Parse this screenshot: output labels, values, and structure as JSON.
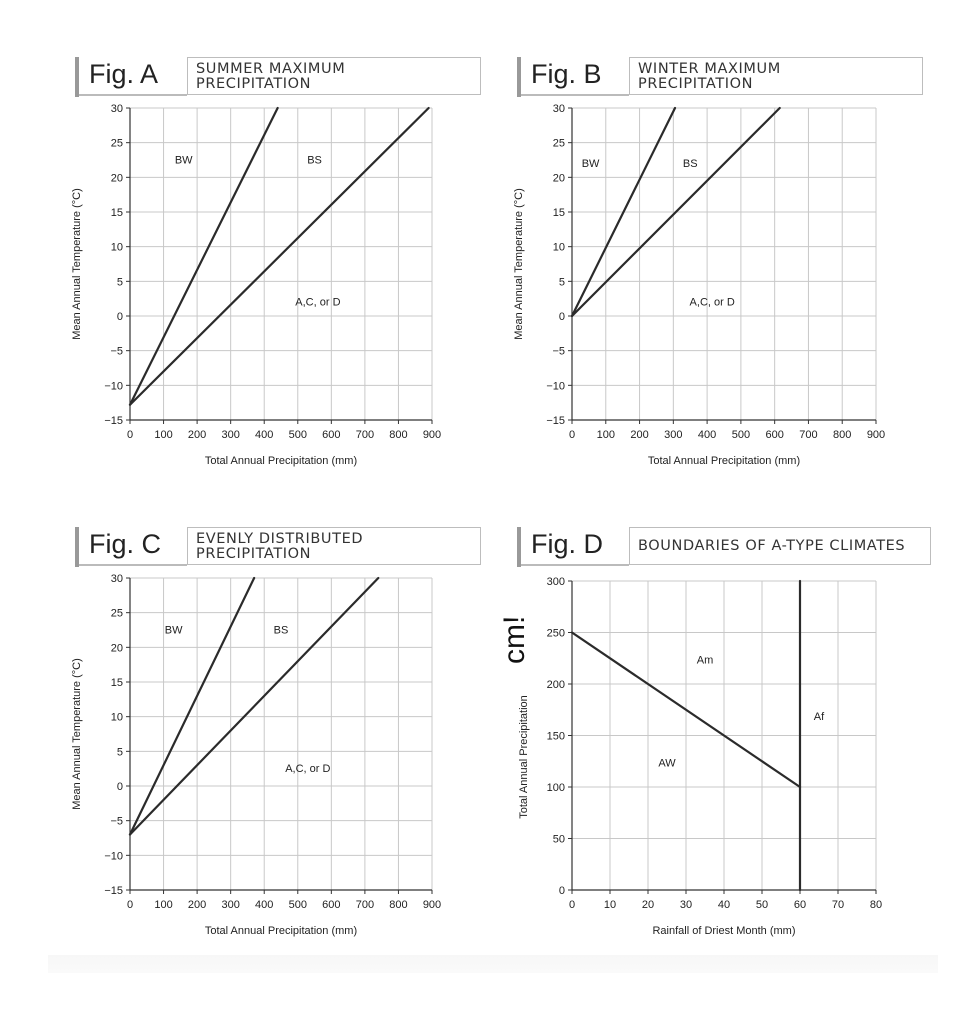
{
  "chart_data": [
    {
      "type": "line",
      "figure": "Fig. A",
      "title": "SUMMER MAXIMUM PRECIPITATION",
      "title_lines": [
        "SUMMER MAXIMUM",
        "PRECIPITATION"
      ],
      "xlabel": "Total Annual Precipitation (mm)",
      "ylabel": "Mean Annual Temperature (°C)",
      "xlim": [
        0,
        900
      ],
      "ylim": [
        -15,
        30
      ],
      "xticks": [
        0,
        100,
        200,
        300,
        400,
        500,
        600,
        700,
        800,
        900
      ],
      "yticks": [
        -15,
        -10,
        -5,
        0,
        5,
        10,
        15,
        20,
        25,
        30
      ],
      "grid": true,
      "series": [
        {
          "x": [
            0,
            440
          ],
          "y": [
            -12.8,
            30
          ]
        },
        {
          "x": [
            0,
            890
          ],
          "y": [
            -12.8,
            30
          ]
        }
      ],
      "annotations": [
        {
          "text": "BW",
          "x": 160,
          "y": 22
        },
        {
          "text": "BS",
          "x": 550,
          "y": 22
        },
        {
          "text": "A,C, or D",
          "x": 560,
          "y": 1.5
        }
      ]
    },
    {
      "type": "line",
      "figure": "Fig. B",
      "title": "WINTER MAXIMUM PRECIPITATION",
      "title_lines": [
        "WINTER MAXIMUM",
        "PRECIPITATION"
      ],
      "xlabel": "Total Annual Precipitation (mm)",
      "ylabel": "Mean Annual Temperature (°C)",
      "xlim": [
        0,
        900
      ],
      "ylim": [
        -15,
        30
      ],
      "xticks": [
        0,
        100,
        200,
        300,
        400,
        500,
        600,
        700,
        800,
        900
      ],
      "yticks": [
        -15,
        -10,
        -5,
        0,
        5,
        10,
        15,
        20,
        25,
        30
      ],
      "grid": true,
      "series": [
        {
          "x": [
            0,
            305
          ],
          "y": [
            0,
            30
          ]
        },
        {
          "x": [
            0,
            615
          ],
          "y": [
            0,
            30
          ]
        }
      ],
      "annotations": [
        {
          "text": "BW",
          "x": 55,
          "y": 21.5
        },
        {
          "text": "BS",
          "x": 350,
          "y": 21.5
        },
        {
          "text": "A,C, or D",
          "x": 415,
          "y": 1.5
        }
      ]
    },
    {
      "type": "line",
      "figure": "Fig. C",
      "title": "EVENLY DISTRIBUTED PRECIPITATION",
      "title_lines": [
        "EVENLY DISTRIBUTED",
        "PRECIPITATION"
      ],
      "xlabel": "Total Annual Precipitation (mm)",
      "ylabel": "Mean Annual Temperature (°C)",
      "xlim": [
        0,
        900
      ],
      "ylim": [
        -15,
        30
      ],
      "xticks": [
        0,
        100,
        200,
        300,
        400,
        500,
        600,
        700,
        800,
        900
      ],
      "yticks": [
        -15,
        -10,
        -5,
        0,
        5,
        10,
        15,
        20,
        25,
        30
      ],
      "grid": true,
      "series": [
        {
          "x": [
            0,
            370
          ],
          "y": [
            -7,
            30
          ]
        },
        {
          "x": [
            0,
            740
          ],
          "y": [
            -7,
            30
          ]
        }
      ],
      "annotations": [
        {
          "text": "BW",
          "x": 130,
          "y": 22
        },
        {
          "text": "BS",
          "x": 450,
          "y": 22
        },
        {
          "text": "A,C, or D",
          "x": 530,
          "y": 2
        }
      ]
    },
    {
      "type": "line",
      "figure": "Fig. D",
      "title": "BOUNDARIES OF A-TYPE CLIMATES",
      "title_lines": [
        "BOUNDARIES OF A-TYPE CLIMATES"
      ],
      "xlabel": "Rainfall of Driest Month (mm)",
      "ylabel": "Total Annual Precipitation",
      "side_note": "cm!",
      "xlim": [
        0,
        80
      ],
      "ylim": [
        0,
        300
      ],
      "xticks": [
        0,
        10,
        20,
        30,
        40,
        50,
        60,
        70,
        80
      ],
      "yticks": [
        0,
        50,
        100,
        150,
        200,
        250,
        300
      ],
      "grid": true,
      "series": [
        {
          "x": [
            0,
            60
          ],
          "y": [
            250,
            100
          ]
        },
        {
          "x": [
            60,
            60
          ],
          "y": [
            0,
            300
          ]
        }
      ],
      "annotations": [
        {
          "text": "Am",
          "x": 35,
          "y": 220
        },
        {
          "text": "Af",
          "x": 65,
          "y": 165
        },
        {
          "text": "AW",
          "x": 25,
          "y": 120
        }
      ]
    }
  ]
}
